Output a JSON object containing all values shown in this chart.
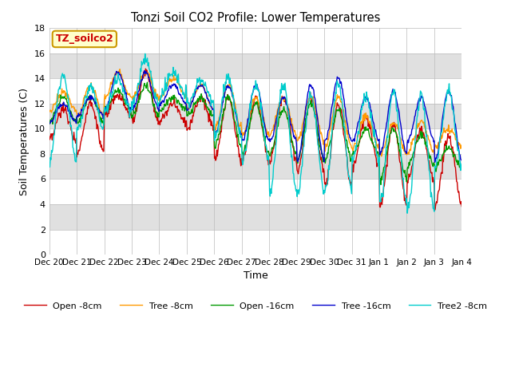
{
  "title": "Tonzi Soil CO2 Profile: Lower Temperatures",
  "xlabel": "Time",
  "ylabel": "Soil Temperatures (C)",
  "ylim": [
    0,
    18
  ],
  "yticks": [
    0,
    2,
    4,
    6,
    8,
    10,
    12,
    14,
    16,
    18
  ],
  "x_labels": [
    "Dec 20",
    "Dec 21",
    "Dec 22",
    "Dec 23",
    "Dec 24",
    "Dec 25",
    "Dec 26",
    "Dec 27",
    "Dec 28",
    "Dec 29",
    "Dec 30",
    "Dec 31",
    "Jan 1",
    "Jan 2",
    "Jan 3",
    "Jan 4"
  ],
  "legend_labels": [
    "Open -8cm",
    "Tree -8cm",
    "Open -16cm",
    "Tree -16cm",
    "Tree2 -8cm"
  ],
  "colors": [
    "#cc0000",
    "#ff9900",
    "#009900",
    "#0000cc",
    "#00cccc"
  ],
  "annotation_text": "TZ_soilco2",
  "annotation_color": "#cc0000",
  "annotation_bg": "#ffffcc",
  "annotation_border": "#cc9900"
}
